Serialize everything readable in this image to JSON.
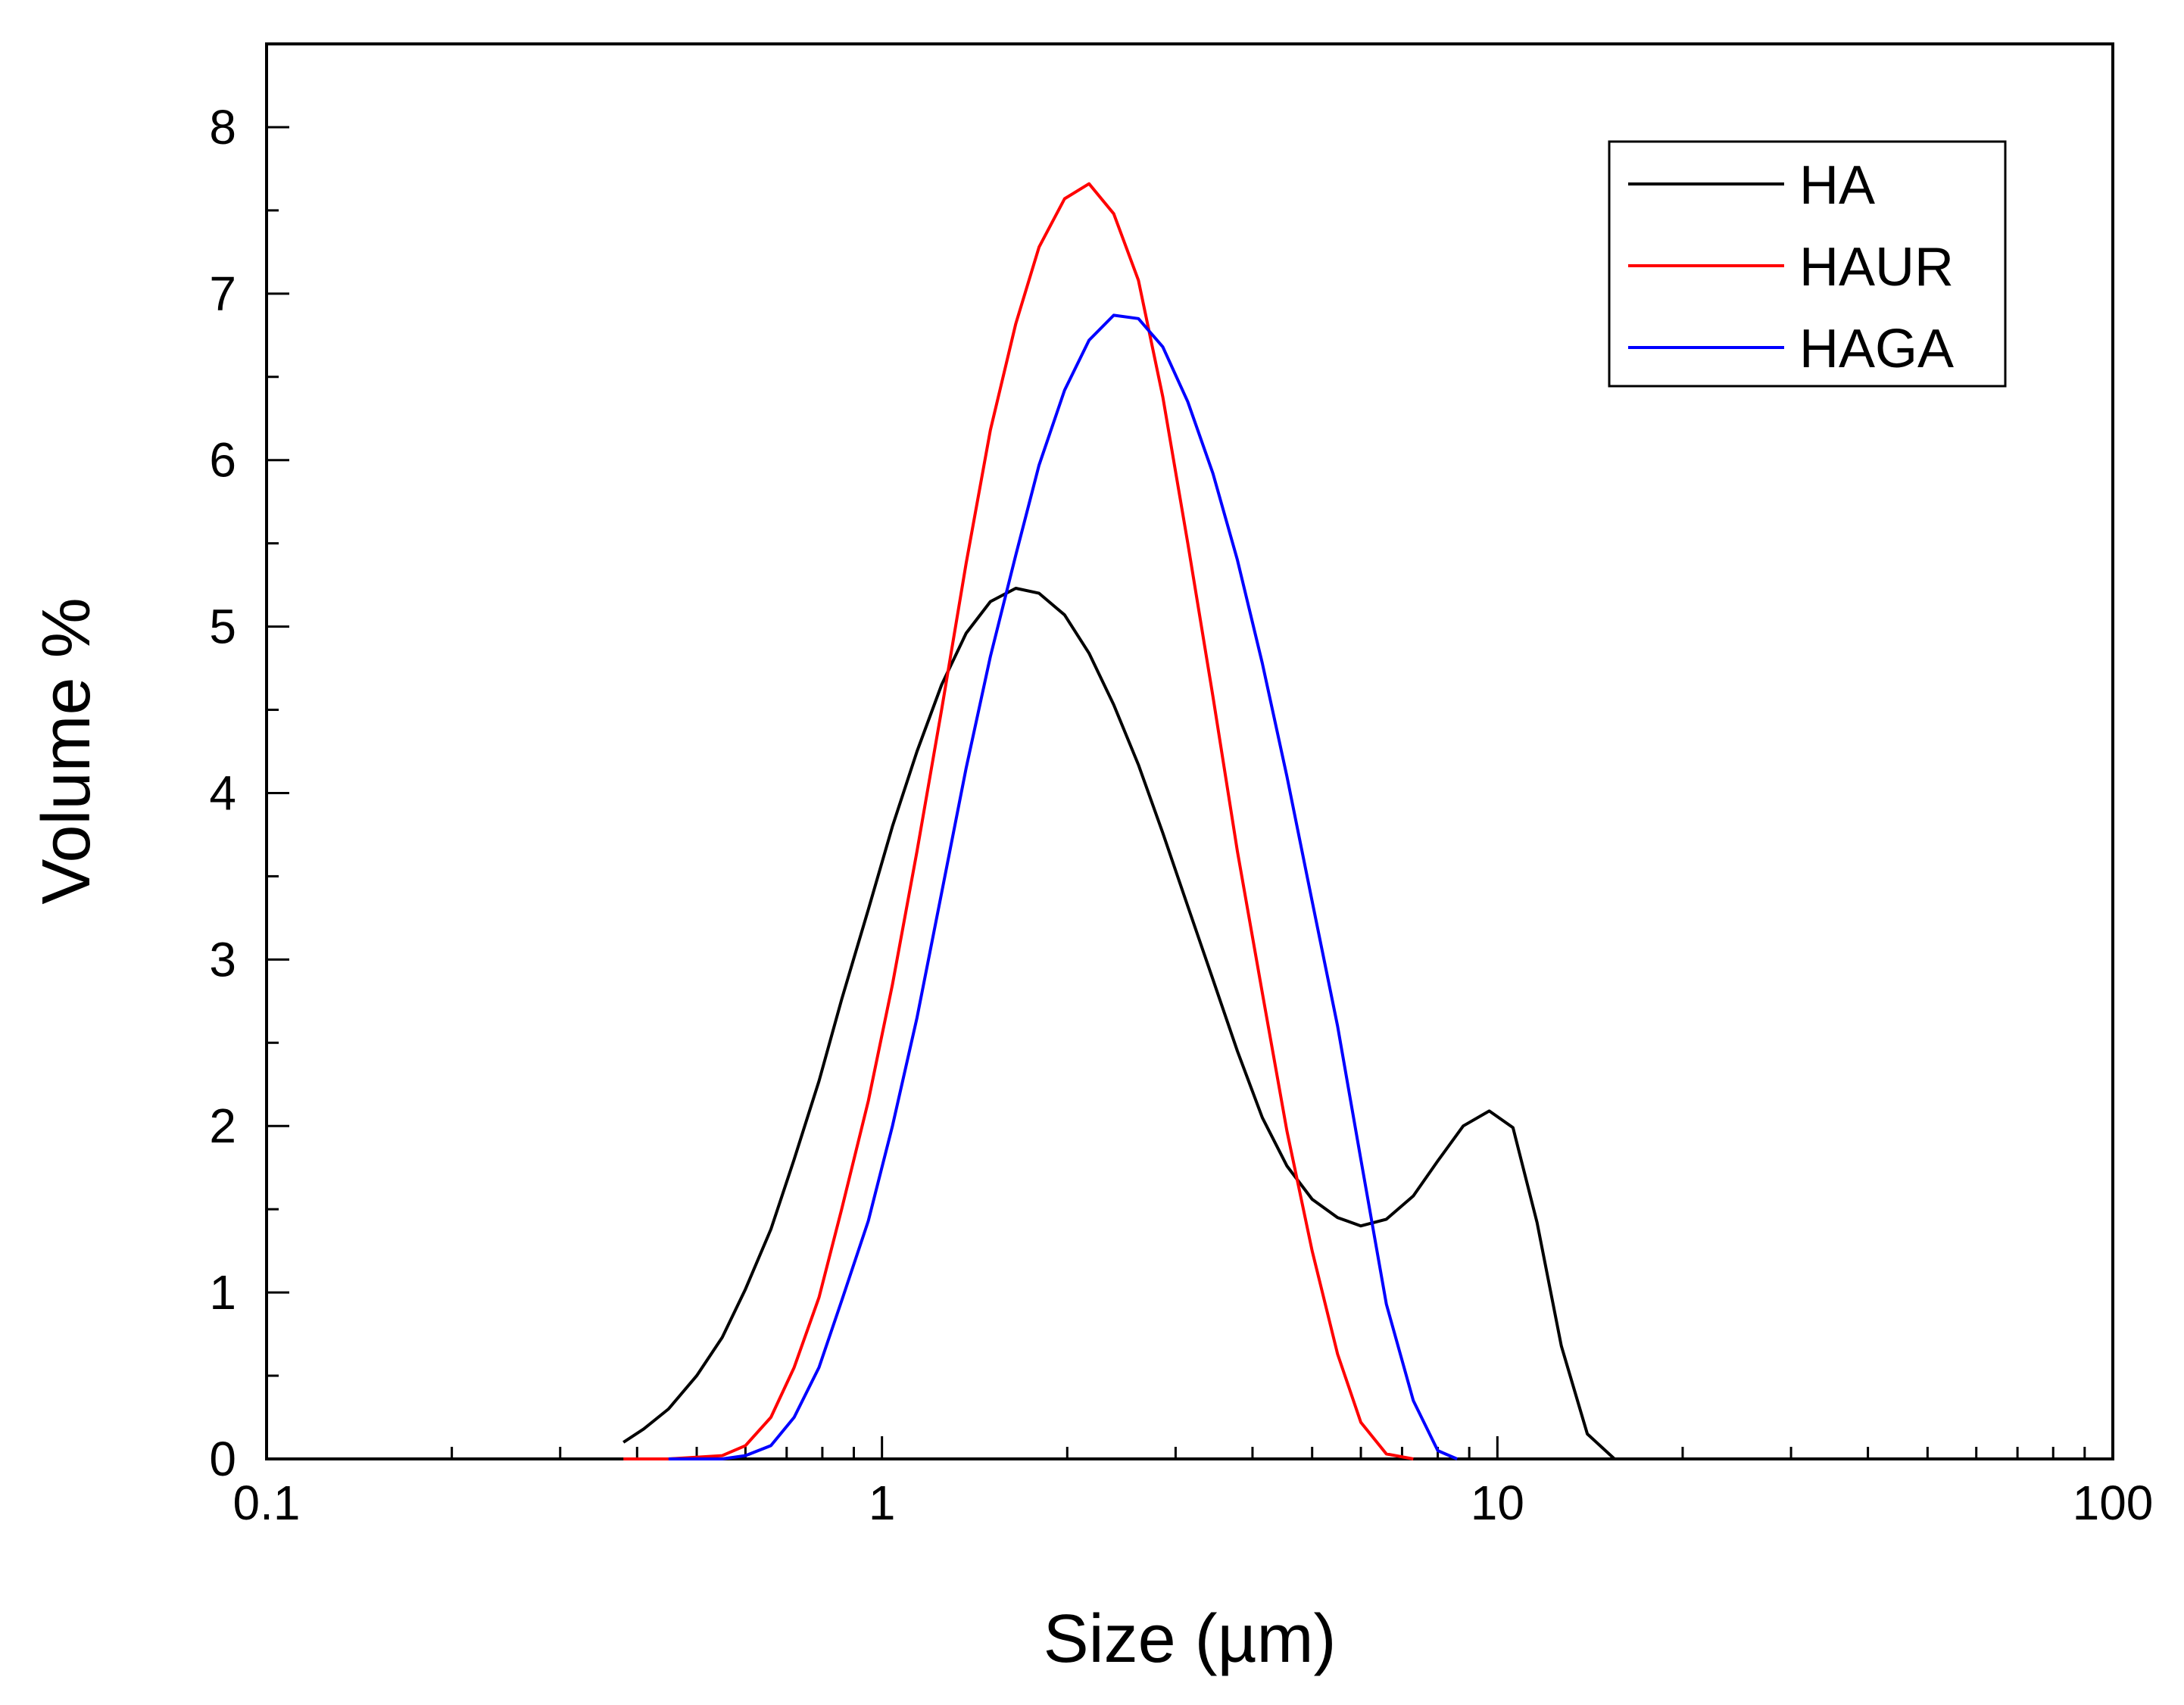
{
  "chart_data": {
    "type": "line",
    "title": "",
    "xlabel": "Size (µm)",
    "ylabel": "Volume %",
    "x_scale": "log",
    "xlim": [
      0.1,
      100
    ],
    "ylim": [
      0,
      8.5
    ],
    "x_ticks": [
      0.1,
      1,
      10,
      100
    ],
    "x_tick_labels": [
      "0.1",
      "1",
      "10",
      "100"
    ],
    "y_ticks": [
      0,
      1,
      2,
      3,
      4,
      5,
      6,
      7,
      8
    ],
    "y_tick_labels": [
      "0",
      "1",
      "2",
      "3",
      "4",
      "5",
      "6",
      "7",
      "8"
    ],
    "grid": false,
    "legend_position": "top-right",
    "series": [
      {
        "name": "HA",
        "color": "#000000",
        "x": [
          0.38,
          0.41,
          0.45,
          0.5,
          0.55,
          0.6,
          0.66,
          0.72,
          0.79,
          0.86,
          0.95,
          1.04,
          1.14,
          1.25,
          1.37,
          1.5,
          1.65,
          1.8,
          1.98,
          2.17,
          2.38,
          2.61,
          2.86,
          3.14,
          3.45,
          3.78,
          4.15,
          4.55,
          5.0,
          5.5,
          6.0,
          6.6,
          7.3,
          8.0,
          8.8,
          9.7,
          10.6,
          11.6,
          12.7,
          14.0,
          15.5
        ],
        "y": [
          0.1,
          0.18,
          0.3,
          0.5,
          0.73,
          1.02,
          1.38,
          1.8,
          2.27,
          2.76,
          3.3,
          3.8,
          4.25,
          4.65,
          4.96,
          5.15,
          5.23,
          5.2,
          5.07,
          4.84,
          4.53,
          4.17,
          3.76,
          3.32,
          2.88,
          2.45,
          2.05,
          1.76,
          1.56,
          1.45,
          1.4,
          1.44,
          1.58,
          1.79,
          2.0,
          2.09,
          1.99,
          1.42,
          0.68,
          0.15,
          0.0
        ]
      },
      {
        "name": "HAUR",
        "color": "#ff0000",
        "x": [
          0.38,
          0.45,
          0.55,
          0.6,
          0.66,
          0.72,
          0.79,
          0.86,
          0.95,
          1.04,
          1.14,
          1.25,
          1.37,
          1.5,
          1.65,
          1.8,
          1.98,
          2.17,
          2.38,
          2.61,
          2.86,
          3.14,
          3.45,
          3.78,
          4.15,
          4.55,
          5.0,
          5.5,
          6.0,
          6.6,
          7.3
        ],
        "y": [
          0.0,
          0.0,
          0.02,
          0.08,
          0.25,
          0.55,
          0.97,
          1.5,
          2.15,
          2.85,
          3.65,
          4.5,
          5.38,
          6.18,
          6.82,
          7.28,
          7.57,
          7.66,
          7.48,
          7.08,
          6.38,
          5.5,
          4.58,
          3.65,
          2.8,
          1.97,
          1.25,
          0.63,
          0.22,
          0.03,
          0.0
        ]
      },
      {
        "name": "HAGA",
        "color": "#0000ff",
        "x": [
          0.45,
          0.55,
          0.6,
          0.66,
          0.72,
          0.79,
          0.86,
          0.95,
          1.04,
          1.14,
          1.25,
          1.37,
          1.5,
          1.65,
          1.8,
          1.98,
          2.17,
          2.38,
          2.61,
          2.86,
          3.14,
          3.45,
          3.78,
          4.15,
          4.55,
          5.0,
          5.5,
          6.0,
          6.6,
          7.3,
          8.0,
          8.6
        ],
        "y": [
          0.0,
          0.0,
          0.02,
          0.08,
          0.25,
          0.55,
          0.95,
          1.43,
          2.0,
          2.65,
          3.4,
          4.15,
          4.82,
          5.43,
          5.97,
          6.42,
          6.72,
          6.87,
          6.85,
          6.68,
          6.35,
          5.92,
          5.4,
          4.78,
          4.1,
          3.35,
          2.6,
          1.8,
          0.93,
          0.35,
          0.05,
          0.0
        ]
      }
    ]
  }
}
